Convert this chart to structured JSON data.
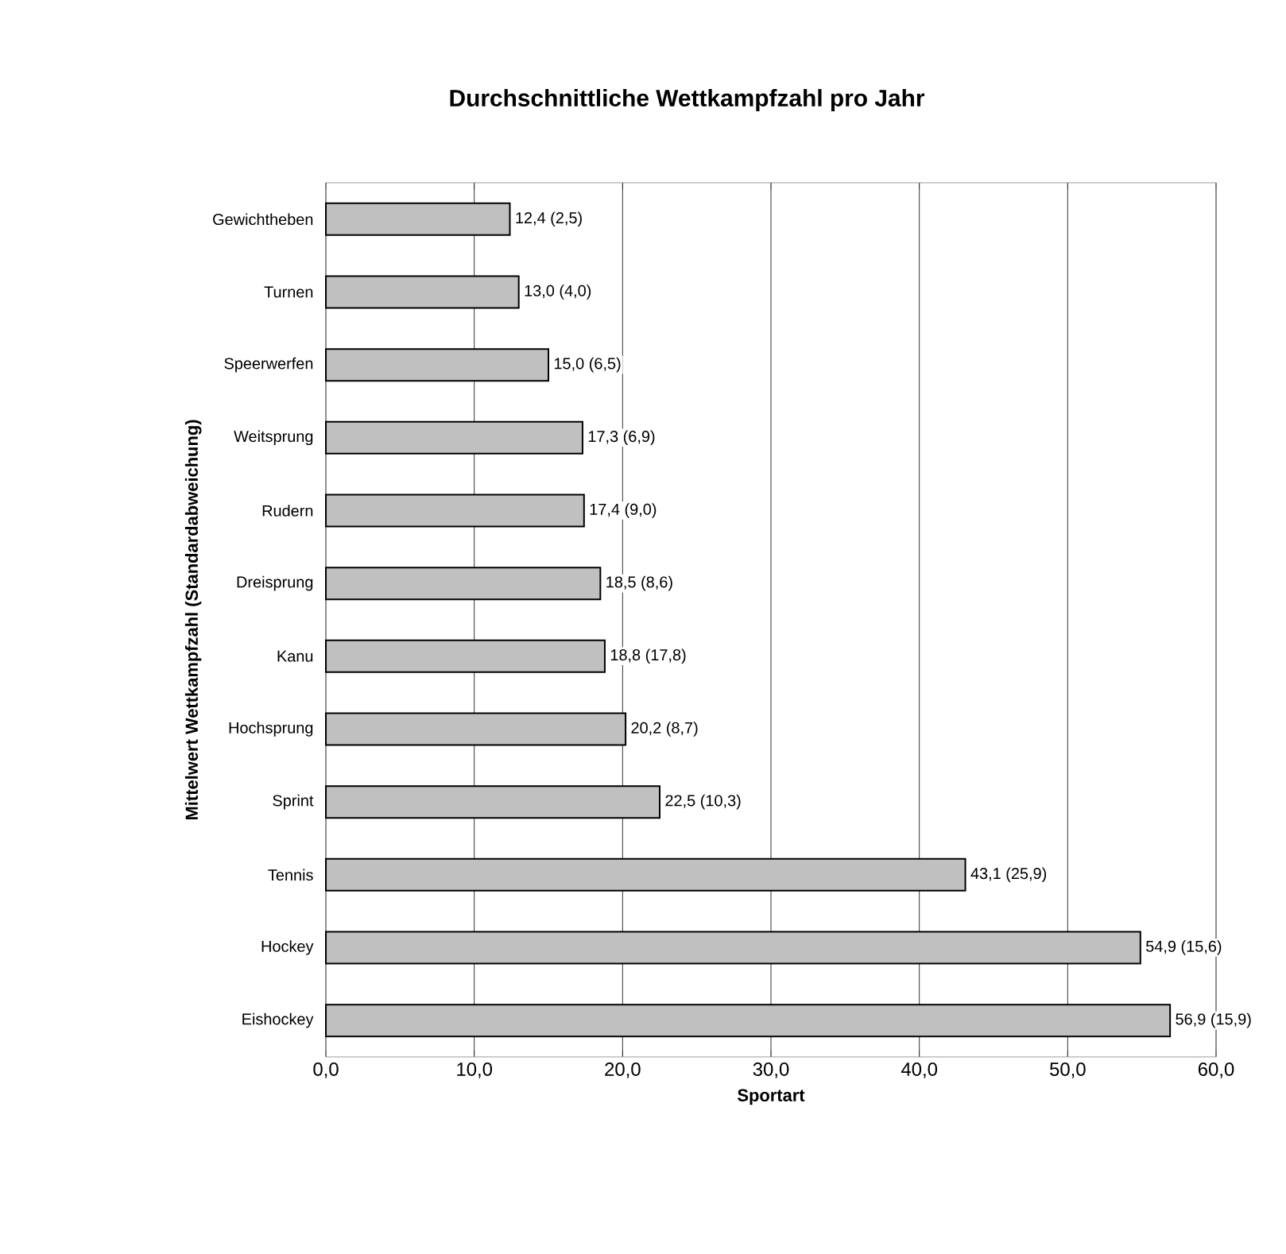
{
  "chart_data": {
    "type": "bar",
    "orientation": "horizontal",
    "title": "Durchschnittliche Wettkampfzahl pro Jahr",
    "xlabel": "Sportart",
    "ylabel": "Mittelwert Wettkampfzahl (Standardabweichung)",
    "categories": [
      "Gewichtheben",
      "Turnen",
      "Speerwerfen",
      "Weitsprung",
      "Rudern",
      "Dreisprung",
      "Kanu",
      "Hochsprung",
      "Sprint",
      "Tennis",
      "Hockey",
      "Eishockey"
    ],
    "values": [
      12.4,
      13.0,
      15.0,
      17.3,
      17.4,
      18.5,
      18.8,
      20.2,
      22.5,
      43.1,
      54.9,
      56.9
    ],
    "value_labels": [
      "12,4 (2,5)",
      "13,0 (4,0)",
      "15,0 (6,5)",
      "17,3 (6,9)",
      "17,4 (9,0)",
      "18,5 (8,6)",
      "18,8 (17,8)",
      "20,2 (8,7)",
      "22,5 (10,3)",
      "43,1 (25,9)",
      "54,9 (15,6)",
      "56,9 (15,9)"
    ],
    "color": "#c0c0c0",
    "xlim": [
      0,
      60
    ],
    "xticks": [
      {
        "value": 0,
        "label": "0,0"
      },
      {
        "value": 10,
        "label": "10,0"
      },
      {
        "value": 20,
        "label": "20,0"
      },
      {
        "value": 30,
        "label": "30,0"
      },
      {
        "value": 40,
        "label": "40,0"
      },
      {
        "value": 50,
        "label": "50,0"
      },
      {
        "value": 60,
        "label": "60,0"
      }
    ],
    "grid": "x"
  }
}
